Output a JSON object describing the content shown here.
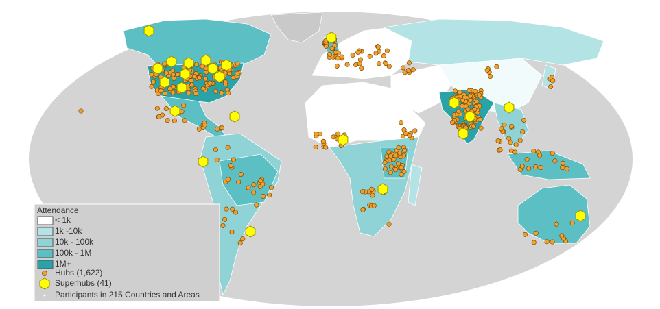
{
  "legend": {
    "title": "Attendance",
    "items": [
      "< 1k",
      "1k -10k",
      "10k - 100k",
      "100k - 1M",
      "1M+"
    ],
    "hubs": "Hubs (1,622)",
    "superhubs": "Superhubs (41)",
    "note": "Participants in 215 Countries and Areas"
  }
}
